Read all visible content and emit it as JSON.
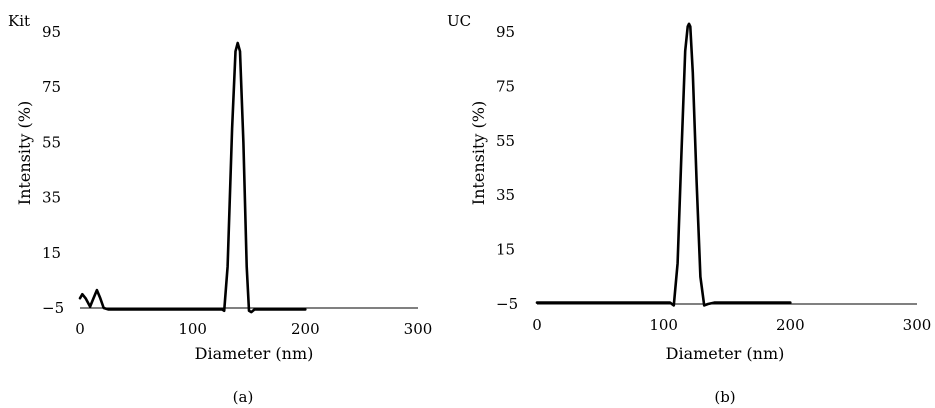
{
  "chart_data": [
    {
      "type": "line",
      "panel_label": "Kit",
      "caption": "(a)",
      "xlabel": "Diameter (nm)",
      "ylabel": "Intensity (%)",
      "xlim": [
        0,
        300
      ],
      "ylim": [
        -5,
        95
      ],
      "xticks": [
        "0",
        "100",
        "200",
        "300"
      ],
      "yticks": [
        "95",
        "75",
        "55",
        "35",
        "15",
        "−5"
      ],
      "grid": false,
      "series": [
        {
          "x": [
            0,
            2,
            5,
            9,
            12,
            15,
            18,
            21,
            25,
            30,
            60,
            100,
            120,
            126,
            128,
            131,
            135,
            138,
            140,
            142,
            145,
            148,
            150,
            152,
            155,
            158,
            200
          ],
          "y": [
            -1.5,
            0,
            -1.5,
            -4.5,
            -1.5,
            1.5,
            -1.5,
            -5,
            -5.5,
            -5.5,
            -5.5,
            -5.5,
            -5.5,
            -5.5,
            -6,
            10,
            60,
            88,
            91,
            88,
            55,
            10,
            -6,
            -6.5,
            -5.5,
            -5.5,
            -5.5
          ]
        }
      ]
    },
    {
      "type": "line",
      "panel_label": "UC",
      "caption": "(b)",
      "xlabel": "Diameter (nm)",
      "ylabel": "Intensity (%)",
      "xlim": [
        0,
        300
      ],
      "ylim": [
        -5,
        95
      ],
      "xticks": [
        "0",
        "100",
        "200",
        "300"
      ],
      "yticks": [
        "95",
        "75",
        "55",
        "35",
        "15",
        "−5"
      ],
      "grid": false,
      "series": [
        {
          "x": [
            0,
            50,
            100,
            105,
            108,
            111,
            114,
            117,
            119,
            120,
            121,
            123,
            126,
            129,
            132,
            135,
            140,
            200
          ],
          "y": [
            -4.5,
            -4.5,
            -4.5,
            -4.5,
            -5.5,
            10,
            50,
            88,
            97,
            98,
            97,
            80,
            40,
            5,
            -5.5,
            -5,
            -4.5,
            -4.5
          ]
        }
      ]
    }
  ]
}
